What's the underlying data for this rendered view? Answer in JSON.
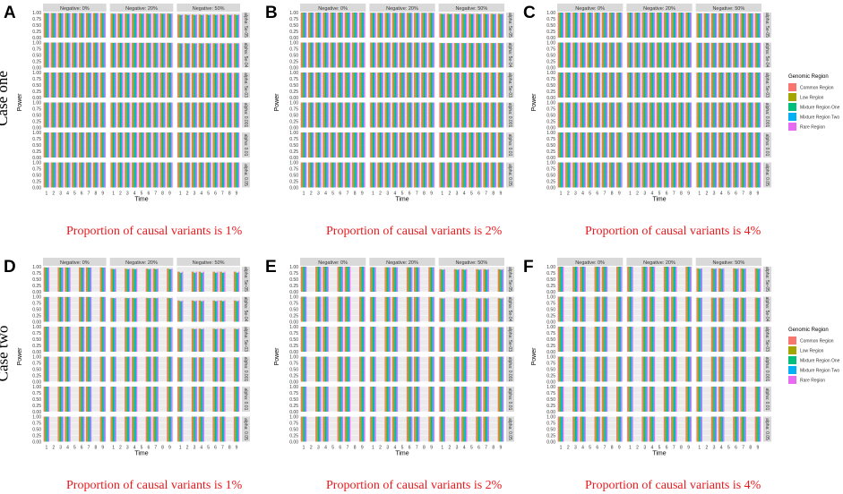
{
  "panel_letters": [
    "A",
    "B",
    "C",
    "D",
    "E",
    "F"
  ],
  "case_labels": [
    "Case one",
    "Case two"
  ],
  "captions": [
    "Proportion of causal variants is 1%",
    "Proportion of causal variants is 2%",
    "Proportion of causal variants is 4%",
    "Proportion of causal variants is 1%",
    "Proportion of causal variants is 2%",
    "Proportion of causal variants is 4%"
  ],
  "legend": {
    "title": "Genomic Region",
    "entries": [
      "Common Region",
      "Low Region",
      "Mixture Region One",
      "Mixture Region Two",
      "Rare Region"
    ]
  },
  "colors": {
    "series": [
      "#F8766D",
      "#A3A500",
      "#00BF7D",
      "#00B0F6",
      "#E76BF3"
    ],
    "strip_bg": "#D9D9D9",
    "panel_bg": "#EBEBEB",
    "caption": "#E8191D"
  },
  "chart_data": [
    {
      "panel": "A",
      "type": "bar",
      "case": "Case one",
      "caption": "Proportion of causal variants is 1%",
      "xlabel": "Time",
      "ylabel": "Power",
      "x": [
        "1",
        "2",
        "3",
        "4",
        "5",
        "6",
        "7",
        "8",
        "9"
      ],
      "ylim": [
        0,
        1
      ],
      "yticks": [
        "0.00",
        "0.25",
        "0.50",
        "0.75",
        "1.00"
      ],
      "columns": [
        "Negative: 0%",
        "Negative: 20%",
        "Negative: 50%"
      ],
      "rows": [
        "alpha: 5e-05",
        "alpha: 5e-04",
        "alpha: 5e-03",
        "alpha: 0.001",
        "alpha: 0.01",
        "alpha: 0.05"
      ],
      "series_names": [
        "Common Region",
        "Low Region",
        "Mixture Region One",
        "Mixture Region Two",
        "Rare Region"
      ],
      "values": [
        [
          0.98,
          0.96,
          0.92
        ],
        [
          1,
          0.99,
          0.97
        ],
        [
          1,
          1,
          0.99
        ],
        [
          1,
          1,
          1
        ],
        [
          1,
          1,
          1
        ],
        [
          1,
          1,
          1
        ]
      ],
      "grid": true,
      "legend": "right"
    },
    {
      "panel": "B",
      "type": "bar",
      "case": "Case one",
      "caption": "Proportion of causal variants is 2%",
      "xlabel": "Time",
      "ylabel": "Power",
      "x": [
        "1",
        "2",
        "3",
        "4",
        "5",
        "6",
        "7",
        "8",
        "9"
      ],
      "ylim": [
        0,
        1
      ],
      "yticks": [
        "0.00",
        "0.25",
        "0.50",
        "0.75",
        "1.00"
      ],
      "columns": [
        "Negative: 0%",
        "Negative: 20%",
        "Negative: 50%"
      ],
      "rows": [
        "alpha: 5e-05",
        "alpha: 5e-04",
        "alpha: 5e-03",
        "alpha: 0.001",
        "alpha: 0.01",
        "alpha: 0.05"
      ],
      "series_names": [
        "Common Region",
        "Low Region",
        "Mixture Region One",
        "Mixture Region Two",
        "Rare Region"
      ],
      "values": [
        [
          1,
          0.99,
          0.95
        ],
        [
          1,
          1,
          0.98
        ],
        [
          1,
          1,
          1
        ],
        [
          1,
          1,
          1
        ],
        [
          1,
          1,
          1
        ],
        [
          1,
          1,
          1
        ]
      ],
      "grid": true,
      "legend": "right"
    },
    {
      "panel": "C",
      "type": "bar",
      "case": "Case one",
      "caption": "Proportion of causal variants is 4%",
      "xlabel": "Time",
      "ylabel": "Power",
      "x": [
        "1",
        "2",
        "3",
        "4",
        "5",
        "6",
        "7",
        "8",
        "9"
      ],
      "ylim": [
        0,
        1
      ],
      "yticks": [
        "0.00",
        "0.25",
        "0.50",
        "0.75",
        "1.00"
      ],
      "columns": [
        "Negative: 0%",
        "Negative: 20%",
        "Negative: 50%"
      ],
      "rows": [
        "alpha: 5e-05",
        "alpha: 5e-04",
        "alpha: 5e-03",
        "alpha: 0.001",
        "alpha: 0.01",
        "alpha: 0.05"
      ],
      "series_names": [
        "Common Region",
        "Low Region",
        "Mixture Region One",
        "Mixture Region Two",
        "Rare Region"
      ],
      "values": [
        [
          1,
          1,
          0.97
        ],
        [
          1,
          1,
          0.99
        ],
        [
          1,
          1,
          1
        ],
        [
          1,
          1,
          1
        ],
        [
          1,
          1,
          1
        ],
        [
          1,
          1,
          1
        ]
      ],
      "grid": true,
      "legend": "right"
    },
    {
      "panel": "D",
      "type": "bar",
      "case": "Case two",
      "caption": "Proportion of causal variants is 1%",
      "xlabel": "Time",
      "ylabel": "Power",
      "x": [
        "1",
        "2",
        "3",
        "4",
        "5",
        "6",
        "7",
        "8",
        "9"
      ],
      "ylim": [
        0,
        1
      ],
      "yticks": [
        "0.00",
        "0.25",
        "0.50",
        "0.75",
        "1.00"
      ],
      "columns": [
        "Negative: 0%",
        "Negative: 20%",
        "Negative: 50%"
      ],
      "rows": [
        "alpha: 5e-05",
        "alpha: 5e-04",
        "alpha: 5e-03",
        "alpha: 0.001",
        "alpha: 0.01",
        "alpha: 0.05"
      ],
      "series_names": [
        "Common Region",
        "Low Region",
        "Mixture Region One",
        "Mixture Region Two",
        "Rare Region"
      ],
      "times_present": [
        1,
        3,
        4,
        6,
        7,
        9
      ],
      "values": [
        [
          0.97,
          0.92,
          0.8
        ],
        [
          0.99,
          0.95,
          0.85
        ],
        [
          1,
          0.98,
          0.92
        ],
        [
          1,
          1,
          0.97
        ],
        [
          1,
          1,
          1
        ],
        [
          1,
          1,
          1
        ]
      ],
      "grid": true,
      "legend": "none"
    },
    {
      "panel": "E",
      "type": "bar",
      "case": "Case two",
      "caption": "Proportion of causal variants is 2%",
      "xlabel": "Time",
      "ylabel": "Power",
      "x": [
        "1",
        "2",
        "3",
        "4",
        "5",
        "6",
        "7",
        "8",
        "9"
      ],
      "ylim": [
        0,
        1
      ],
      "yticks": [
        "0.00",
        "0.25",
        "0.50",
        "0.75",
        "1.00"
      ],
      "columns": [
        "Negative: 0%",
        "Negative: 20%",
        "Negative: 50%"
      ],
      "rows": [
        "alpha: 5e-05",
        "alpha: 5e-04",
        "alpha: 5e-03",
        "alpha: 0.001",
        "alpha: 0.01",
        "alpha: 0.05"
      ],
      "series_names": [
        "Common Region",
        "Low Region",
        "Mixture Region One",
        "Mixture Region Two",
        "Rare Region"
      ],
      "times_present": [
        1,
        3,
        4,
        6,
        7,
        9
      ],
      "values": [
        [
          1,
          0.98,
          0.9
        ],
        [
          1,
          0.99,
          0.94
        ],
        [
          1,
          1,
          0.98
        ],
        [
          1,
          1,
          1
        ],
        [
          1,
          1,
          1
        ],
        [
          1,
          1,
          1
        ]
      ],
      "grid": true,
      "legend": "none"
    },
    {
      "panel": "F",
      "type": "bar",
      "case": "Case two",
      "caption": "Proportion of causal variants is 4%",
      "xlabel": "Time",
      "ylabel": "Power",
      "x": [
        "1",
        "2",
        "3",
        "4",
        "5",
        "6",
        "7",
        "8",
        "9"
      ],
      "ylim": [
        0,
        1
      ],
      "yticks": [
        "0.00",
        "0.25",
        "0.50",
        "0.75",
        "1.00"
      ],
      "columns": [
        "Negative: 0%",
        "Negative: 20%",
        "Negative: 50%"
      ],
      "rows": [
        "alpha: 5e-05",
        "alpha: 5e-04",
        "alpha: 5e-03",
        "alpha: 0.001",
        "alpha: 0.01",
        "alpha: 0.05"
      ],
      "series_names": [
        "Common Region",
        "Low Region",
        "Mixture Region One",
        "Mixture Region Two",
        "Rare Region"
      ],
      "times_present": [
        1,
        3,
        4,
        6,
        7,
        9
      ],
      "values": [
        [
          1,
          1,
          0.93
        ],
        [
          1,
          1,
          0.96
        ],
        [
          1,
          1,
          0.99
        ],
        [
          1,
          1,
          1
        ],
        [
          1,
          1,
          1
        ],
        [
          1,
          1,
          1
        ]
      ],
      "grid": true,
      "legend": "right"
    }
  ]
}
